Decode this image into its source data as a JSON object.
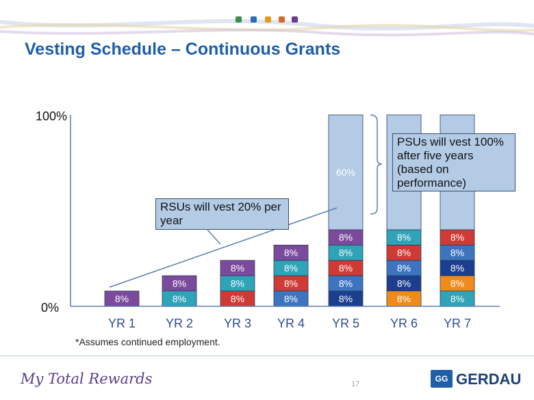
{
  "title": "Vesting Schedule – Continuous Grants",
  "colors": {
    "title": "#1f5ea8",
    "accent_dots": [
      "#3f8b4d",
      "#2e6bb5",
      "#e39a1c",
      "#d36a2c",
      "#6b3a8e"
    ]
  },
  "chart_data": {
    "type": "bar",
    "stacked": true,
    "categories": [
      "YR 1",
      "YR 2",
      "YR 3",
      "YR 4",
      "YR 5",
      "YR 6",
      "YR 7"
    ],
    "ylim": [
      0,
      100
    ],
    "yticks": [
      "0%",
      "100%"
    ],
    "legend": "none",
    "stacks": [
      [
        {
          "value": 8,
          "label": "8%",
          "color": "#7b4a9c"
        }
      ],
      [
        {
          "value": 8,
          "label": "8%",
          "color": "#2fa3b8"
        },
        {
          "value": 8,
          "label": "8%",
          "color": "#7b4a9c"
        }
      ],
      [
        {
          "value": 8,
          "label": "8%",
          "color": "#cf3a34"
        },
        {
          "value": 8,
          "label": "8%",
          "color": "#2fa3b8"
        },
        {
          "value": 8,
          "label": "8%",
          "color": "#7b4a9c"
        }
      ],
      [
        {
          "value": 8,
          "label": "8%",
          "color": "#3d74c0"
        },
        {
          "value": 8,
          "label": "8%",
          "color": "#cf3a34"
        },
        {
          "value": 8,
          "label": "8%",
          "color": "#2fa3b8"
        },
        {
          "value": 8,
          "label": "8%",
          "color": "#7b4a9c"
        }
      ],
      [
        {
          "value": 8,
          "label": "8%",
          "color": "#1b3f8e"
        },
        {
          "value": 8,
          "label": "8%",
          "color": "#3d74c0"
        },
        {
          "value": 8,
          "label": "8%",
          "color": "#cf3a34"
        },
        {
          "value": 8,
          "label": "8%",
          "color": "#2fa3b8"
        },
        {
          "value": 8,
          "label": "8%",
          "color": "#7b4a9c"
        },
        {
          "value": 60,
          "label": "60%",
          "color": "#b4cbe6"
        }
      ],
      [
        {
          "value": 8,
          "label": "8%",
          "color": "#f08a1c"
        },
        {
          "value": 8,
          "label": "8%",
          "color": "#1b3f8e"
        },
        {
          "value": 8,
          "label": "8%",
          "color": "#3d74c0"
        },
        {
          "value": 8,
          "label": "8%",
          "color": "#cf3a34"
        },
        {
          "value": 8,
          "label": "8%",
          "color": "#2fa3b8"
        },
        {
          "value": 60,
          "label": "",
          "color": "#b4cbe6"
        }
      ],
      [
        {
          "value": 8,
          "label": "8%",
          "color": "#2fa3b8"
        },
        {
          "value": 8,
          "label": "8%",
          "color": "#f08a1c"
        },
        {
          "value": 8,
          "label": "8%",
          "color": "#1b3f8e"
        },
        {
          "value": 8,
          "label": "8%",
          "color": "#3d74c0"
        },
        {
          "value": 8,
          "label": "8%",
          "color": "#cf3a34"
        },
        {
          "value": 60,
          "label": "",
          "color": "#b4cbe6"
        }
      ]
    ],
    "annotations": {
      "rsu": "RSUs will vest 20% per year",
      "psu": "PSUs will vest 100% after five years (based on performance)"
    }
  },
  "footnote": "*Assumes continued employment.",
  "footer": {
    "brand_script": "My Total Rewards",
    "page_number": "17",
    "logo_mark": "GG",
    "logo_text": "GERDAU"
  }
}
